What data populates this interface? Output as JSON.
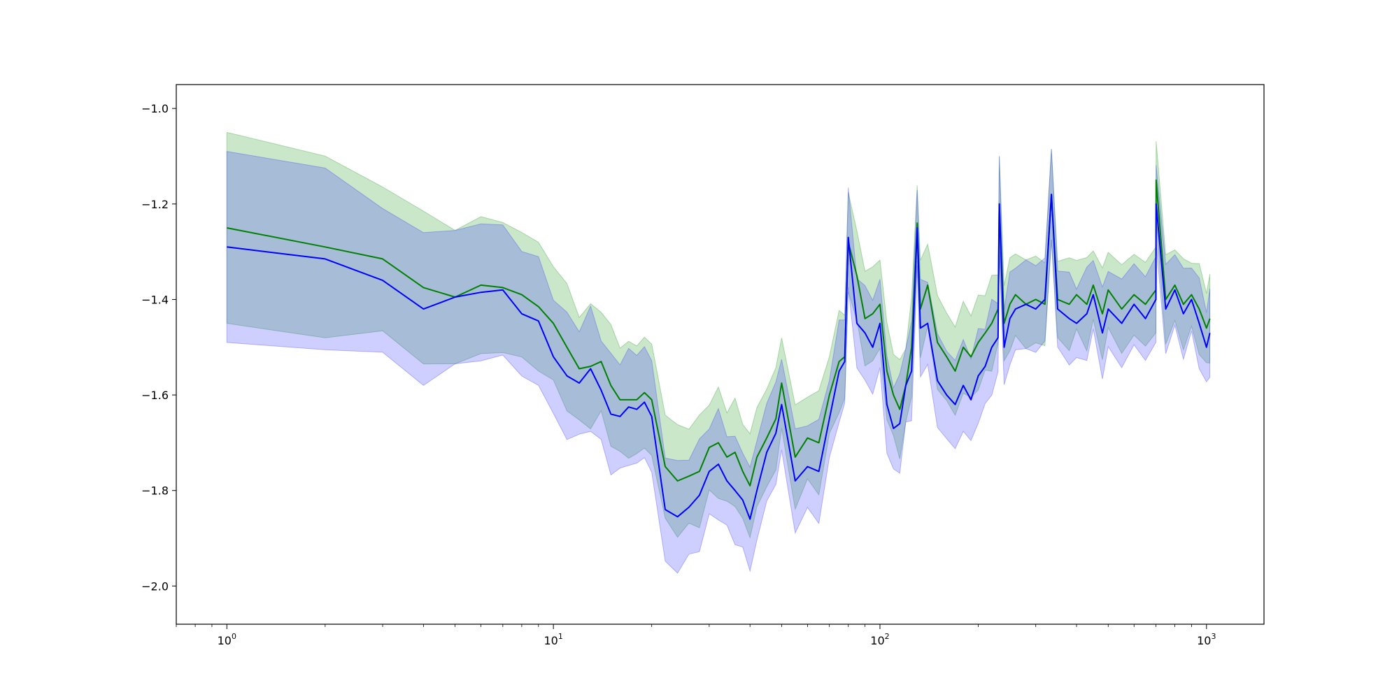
{
  "chart_data": {
    "type": "line",
    "title": "",
    "xlabel": "",
    "ylabel": "",
    "x_scale": "log",
    "xlim": [
      0.7,
      1500
    ],
    "ylim": [
      -2.08,
      -0.95
    ],
    "grid": false,
    "legend": "none",
    "xticks": [
      {
        "value": 1,
        "base": "10",
        "exp": "0"
      },
      {
        "value": 10,
        "base": "10",
        "exp": "1"
      },
      {
        "value": 100,
        "base": "10",
        "exp": "2"
      },
      {
        "value": 1000,
        "base": "10",
        "exp": "3"
      }
    ],
    "yticks": [
      {
        "value": -1.0,
        "label": "−1.0"
      },
      {
        "value": -1.2,
        "label": "−1.2"
      },
      {
        "value": -1.4,
        "label": "−1.4"
      },
      {
        "value": -1.6,
        "label": "−1.6"
      },
      {
        "value": -1.8,
        "label": "−1.8"
      },
      {
        "value": -2.0,
        "label": "−2.0"
      }
    ],
    "series": [
      {
        "color": "#008000",
        "band_color": "#2ca02c",
        "x": [
          1,
          2,
          3,
          4,
          5,
          6,
          7,
          8,
          9,
          10,
          11,
          12,
          13,
          14,
          15,
          16,
          17,
          18,
          19,
          20,
          22,
          24,
          26,
          28,
          30,
          32,
          34,
          36,
          38,
          40,
          42,
          45,
          48,
          50,
          55,
          60,
          65,
          70,
          75,
          78,
          80,
          85,
          90,
          95,
          100,
          105,
          110,
          115,
          120,
          125,
          130,
          133,
          140,
          150,
          160,
          170,
          180,
          190,
          200,
          210,
          220,
          230,
          232,
          240,
          250,
          260,
          280,
          300,
          320,
          335,
          350,
          380,
          400,
          430,
          450,
          480,
          500,
          550,
          600,
          650,
          700,
          701,
          750,
          800,
          850,
          900,
          950,
          1000,
          1024
        ],
        "y": [
          -1.25,
          -1.29,
          -1.315,
          -1.375,
          -1.395,
          -1.37,
          -1.375,
          -1.39,
          -1.415,
          -1.45,
          -1.5,
          -1.545,
          -1.54,
          -1.53,
          -1.58,
          -1.61,
          -1.61,
          -1.61,
          -1.595,
          -1.61,
          -1.75,
          -1.78,
          -1.77,
          -1.76,
          -1.71,
          -1.7,
          -1.73,
          -1.72,
          -1.76,
          -1.79,
          -1.73,
          -1.69,
          -1.65,
          -1.575,
          -1.73,
          -1.69,
          -1.7,
          -1.6,
          -1.53,
          -1.52,
          -1.28,
          -1.35,
          -1.44,
          -1.43,
          -1.41,
          -1.55,
          -1.6,
          -1.63,
          -1.58,
          -1.5,
          -1.24,
          -1.42,
          -1.37,
          -1.49,
          -1.52,
          -1.55,
          -1.5,
          -1.52,
          -1.49,
          -1.47,
          -1.45,
          -1.42,
          -1.2,
          -1.45,
          -1.41,
          -1.39,
          -1.41,
          -1.4,
          -1.41,
          -1.18,
          -1.4,
          -1.41,
          -1.39,
          -1.41,
          -1.37,
          -1.43,
          -1.38,
          -1.42,
          -1.39,
          -1.41,
          -1.38,
          -1.15,
          -1.4,
          -1.37,
          -1.41,
          -1.39,
          -1.42,
          -1.46,
          -1.44
        ]
      },
      {
        "color": "#0000ff",
        "band_color": "#4040ff",
        "x": [
          1,
          2,
          3,
          4,
          5,
          6,
          7,
          8,
          9,
          10,
          11,
          12,
          13,
          14,
          15,
          16,
          17,
          18,
          19,
          20,
          22,
          24,
          26,
          28,
          30,
          32,
          34,
          36,
          38,
          40,
          42,
          45,
          48,
          50,
          55,
          60,
          65,
          70,
          75,
          78,
          80,
          85,
          90,
          95,
          100,
          105,
          110,
          115,
          120,
          125,
          130,
          133,
          140,
          150,
          160,
          170,
          180,
          190,
          200,
          210,
          220,
          230,
          232,
          240,
          250,
          260,
          280,
          300,
          320,
          335,
          350,
          380,
          400,
          430,
          450,
          480,
          500,
          550,
          600,
          650,
          700,
          701,
          750,
          800,
          850,
          900,
          950,
          1000,
          1024
        ],
        "y": [
          -1.29,
          -1.315,
          -1.36,
          -1.42,
          -1.395,
          -1.385,
          -1.38,
          -1.43,
          -1.445,
          -1.52,
          -1.56,
          -1.575,
          -1.545,
          -1.59,
          -1.64,
          -1.645,
          -1.625,
          -1.63,
          -1.615,
          -1.645,
          -1.84,
          -1.855,
          -1.835,
          -1.81,
          -1.76,
          -1.745,
          -1.78,
          -1.8,
          -1.82,
          -1.86,
          -1.8,
          -1.72,
          -1.68,
          -1.62,
          -1.78,
          -1.75,
          -1.76,
          -1.65,
          -1.55,
          -1.53,
          -1.27,
          -1.45,
          -1.47,
          -1.5,
          -1.45,
          -1.62,
          -1.67,
          -1.66,
          -1.58,
          -1.55,
          -1.25,
          -1.46,
          -1.45,
          -1.57,
          -1.6,
          -1.62,
          -1.58,
          -1.61,
          -1.56,
          -1.54,
          -1.5,
          -1.48,
          -1.2,
          -1.5,
          -1.44,
          -1.42,
          -1.41,
          -1.42,
          -1.4,
          -1.18,
          -1.42,
          -1.44,
          -1.45,
          -1.43,
          -1.39,
          -1.47,
          -1.42,
          -1.45,
          -1.41,
          -1.44,
          -1.4,
          -1.2,
          -1.42,
          -1.38,
          -1.43,
          -1.4,
          -1.45,
          -1.5,
          -1.47
        ]
      }
    ]
  }
}
